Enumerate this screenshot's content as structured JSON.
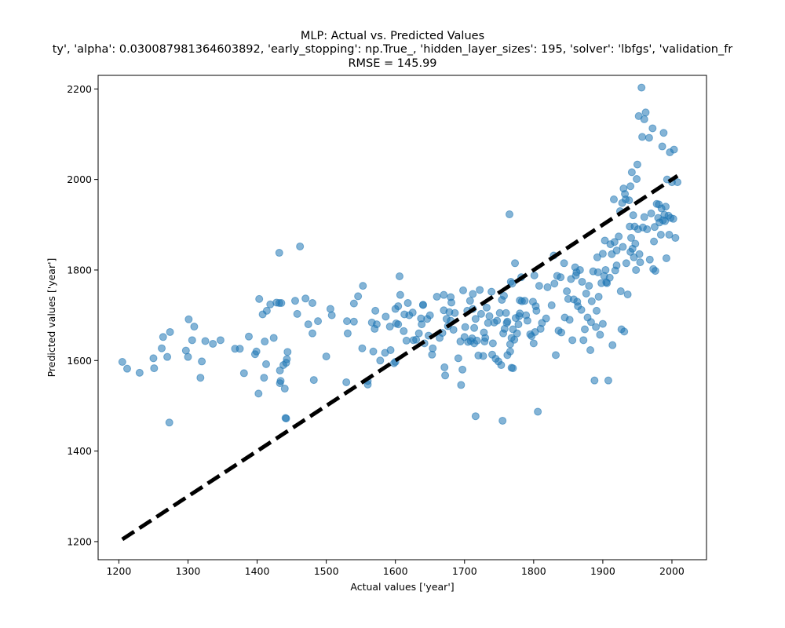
{
  "chart_data": {
    "type": "scatter",
    "title": "MLP: Actual vs. Predicted Values",
    "subtitle": "ty', 'alpha': 0.030087981364603892, 'early_stopping': np.True_, 'hidden_layer_sizes': 195, 'solver': 'lbfgs', 'validation_fr",
    "metric_text": "RMSE = 145.99",
    "xlabel": "Actual values ['year']",
    "ylabel": "Predicted values ['year']",
    "xlim": [
      1170,
      2050
    ],
    "ylim": [
      1160,
      2230
    ],
    "xticks": [
      1200,
      1300,
      1400,
      1500,
      1600,
      1700,
      1800,
      1900,
      2000
    ],
    "yticks": [
      1200,
      1400,
      1600,
      1800,
      2000,
      2200
    ],
    "grid": false,
    "point_color": "#1f77b4",
    "point_alpha": 0.55,
    "reference_line": {
      "style": "dashed",
      "color": "#000000",
      "from": [
        1205,
        1205
      ],
      "to": [
        2008,
        2008
      ]
    },
    "points": [
      [
        1205,
        1597
      ],
      [
        1212,
        1582
      ],
      [
        1230,
        1573
      ],
      [
        1250,
        1605
      ],
      [
        1251,
        1583
      ],
      [
        1262,
        1627
      ],
      [
        1264,
        1652
      ],
      [
        1270,
        1608
      ],
      [
        1273,
        1463
      ],
      [
        1274,
        1663
      ],
      [
        1297,
        1622
      ],
      [
        1300,
        1608
      ],
      [
        1301,
        1691
      ],
      [
        1306,
        1645
      ],
      [
        1309,
        1675
      ],
      [
        1318,
        1562
      ],
      [
        1320,
        1598
      ],
      [
        1325,
        1643
      ],
      [
        1336,
        1637
      ],
      [
        1347,
        1645
      ],
      [
        1368,
        1626
      ],
      [
        1375,
        1626
      ],
      [
        1381,
        1572
      ],
      [
        1388,
        1653
      ],
      [
        1397,
        1614
      ],
      [
        1399,
        1620
      ],
      [
        1402,
        1527
      ],
      [
        1403,
        1736
      ],
      [
        1408,
        1702
      ],
      [
        1410,
        1562
      ],
      [
        1411,
        1642
      ],
      [
        1413,
        1592
      ],
      [
        1414,
        1710
      ],
      [
        1419,
        1724
      ],
      [
        1424,
        1650
      ],
      [
        1428,
        1728
      ],
      [
        1432,
        1727
      ],
      [
        1432,
        1838
      ],
      [
        1433,
        1550
      ],
      [
        1433,
        1578
      ],
      [
        1434,
        1555
      ],
      [
        1435,
        1727
      ],
      [
        1438,
        1590
      ],
      [
        1440,
        1538
      ],
      [
        1441,
        1473
      ],
      [
        1442,
        1472
      ],
      [
        1442,
        1595
      ],
      [
        1443,
        1603
      ],
      [
        1444,
        1619
      ],
      [
        1455,
        1732
      ],
      [
        1458,
        1703
      ],
      [
        1462,
        1852
      ],
      [
        1470,
        1737
      ],
      [
        1474,
        1680
      ],
      [
        1480,
        1727
      ],
      [
        1480,
        1660
      ],
      [
        1482,
        1557
      ],
      [
        1488,
        1687
      ],
      [
        1500,
        1609
      ],
      [
        1506,
        1714
      ],
      [
        1508,
        1700
      ],
      [
        1529,
        1552
      ],
      [
        1530,
        1687
      ],
      [
        1531,
        1660
      ],
      [
        1540,
        1726
      ],
      [
        1540,
        1686
      ],
      [
        1546,
        1742
      ],
      [
        1552,
        1627
      ],
      [
        1553,
        1765
      ],
      [
        1560,
        1547
      ],
      [
        1560,
        1555
      ],
      [
        1566,
        1684
      ],
      [
        1568,
        1620
      ],
      [
        1570,
        1670
      ],
      [
        1571,
        1710
      ],
      [
        1573,
        1680
      ],
      [
        1578,
        1600
      ],
      [
        1585,
        1617
      ],
      [
        1586,
        1697
      ],
      [
        1592,
        1675
      ],
      [
        1593,
        1623
      ],
      [
        1598,
        1594
      ],
      [
        1600,
        1714
      ],
      [
        1600,
        1597
      ],
      [
        1601,
        1682
      ],
      [
        1604,
        1720
      ],
      [
        1604,
        1680
      ],
      [
        1606,
        1786
      ],
      [
        1607,
        1745
      ],
      [
        1612,
        1665
      ],
      [
        1613,
        1702
      ],
      [
        1616,
        1644
      ],
      [
        1618,
        1727
      ],
      [
        1620,
        1700
      ],
      [
        1625,
        1706
      ],
      [
        1626,
        1645
      ],
      [
        1630,
        1646
      ],
      [
        1634,
        1660
      ],
      [
        1637,
        1693
      ],
      [
        1638,
        1680
      ],
      [
        1640,
        1723
      ],
      [
        1640,
        1723
      ],
      [
        1642,
        1638
      ],
      [
        1646,
        1692
      ],
      [
        1648,
        1655
      ],
      [
        1650,
        1700
      ],
      [
        1653,
        1613
      ],
      [
        1654,
        1627
      ],
      [
        1660,
        1741
      ],
      [
        1664,
        1650
      ],
      [
        1668,
        1661
      ],
      [
        1670,
        1711
      ],
      [
        1670,
        1745
      ],
      [
        1671,
        1585
      ],
      [
        1672,
        1567
      ],
      [
        1674,
        1692
      ],
      [
        1676,
        1676
      ],
      [
        1678,
        1707
      ],
      [
        1680,
        1688
      ],
      [
        1680,
        1740
      ],
      [
        1681,
        1728
      ],
      [
        1684,
        1668
      ],
      [
        1686,
        1705
      ],
      [
        1691,
        1605
      ],
      [
        1694,
        1642
      ],
      [
        1695,
        1546
      ],
      [
        1697,
        1580
      ],
      [
        1698,
        1755
      ],
      [
        1700,
        1652
      ],
      [
        1701,
        1674
      ],
      [
        1704,
        1710
      ],
      [
        1705,
        1641
      ],
      [
        1708,
        1732
      ],
      [
        1709,
        1643
      ],
      [
        1711,
        1649
      ],
      [
        1712,
        1714
      ],
      [
        1712,
        1747
      ],
      [
        1714,
        1672
      ],
      [
        1714,
        1638
      ],
      [
        1716,
        1477
      ],
      [
        1716,
        1692
      ],
      [
        1718,
        1644
      ],
      [
        1720,
        1611
      ],
      [
        1722,
        1756
      ],
      [
        1724,
        1703
      ],
      [
        1727,
        1610
      ],
      [
        1728,
        1662
      ],
      [
        1729,
        1642
      ],
      [
        1730,
        1650
      ],
      [
        1732,
        1717
      ],
      [
        1734,
        1683
      ],
      [
        1736,
        1698
      ],
      [
        1739,
        1752
      ],
      [
        1740,
        1613
      ],
      [
        1741,
        1638
      ],
      [
        1743,
        1684
      ],
      [
        1745,
        1604
      ],
      [
        1747,
        1688
      ],
      [
        1749,
        1598
      ],
      [
        1751,
        1705
      ],
      [
        1753,
        1590
      ],
      [
        1754,
        1734
      ],
      [
        1755,
        1467
      ],
      [
        1756,
        1660
      ],
      [
        1757,
        1743
      ],
      [
        1758,
        1670
      ],
      [
        1760,
        1705
      ],
      [
        1761,
        1683
      ],
      [
        1762,
        1686
      ],
      [
        1762,
        1612
      ],
      [
        1765,
        1923
      ],
      [
        1766,
        1620
      ],
      [
        1766,
        1636
      ],
      [
        1767,
        1774
      ],
      [
        1768,
        1650
      ],
      [
        1768,
        1584
      ],
      [
        1769,
        1770
      ],
      [
        1770,
        1583
      ],
      [
        1770,
        1669
      ],
      [
        1772,
        1646
      ],
      [
        1773,
        1815
      ],
      [
        1774,
        1694
      ],
      [
        1776,
        1660
      ],
      [
        1778,
        1680
      ],
      [
        1779,
        1698
      ],
      [
        1780,
        1704
      ],
      [
        1780,
        1733
      ],
      [
        1782,
        1784
      ],
      [
        1783,
        1731
      ],
      [
        1787,
        1732
      ],
      [
        1789,
        1700
      ],
      [
        1791,
        1688
      ],
      [
        1795,
        1658
      ],
      [
        1797,
        1654
      ],
      [
        1799,
        1730
      ],
      [
        1800,
        1638
      ],
      [
        1801,
        1788
      ],
      [
        1802,
        1663
      ],
      [
        1803,
        1720
      ],
      [
        1804,
        1710
      ],
      [
        1806,
        1487
      ],
      [
        1808,
        1765
      ],
      [
        1810,
        1670
      ],
      [
        1812,
        1683
      ],
      [
        1818,
        1693
      ],
      [
        1820,
        1762
      ],
      [
        1826,
        1722
      ],
      [
        1829,
        1832
      ],
      [
        1830,
        1770
      ],
      [
        1832,
        1612
      ],
      [
        1834,
        1787
      ],
      [
        1836,
        1666
      ],
      [
        1839,
        1784
      ],
      [
        1840,
        1662
      ],
      [
        1844,
        1815
      ],
      [
        1845,
        1695
      ],
      [
        1848,
        1753
      ],
      [
        1850,
        1736
      ],
      [
        1852,
        1690
      ],
      [
        1854,
        1780
      ],
      [
        1856,
        1645
      ],
      [
        1858,
        1735
      ],
      [
        1860,
        1806
      ],
      [
        1861,
        1788
      ],
      [
        1862,
        1795
      ],
      [
        1863,
        1730
      ],
      [
        1864,
        1720
      ],
      [
        1867,
        1800
      ],
      [
        1869,
        1712
      ],
      [
        1870,
        1774
      ],
      [
        1872,
        1645
      ],
      [
        1874,
        1669
      ],
      [
        1876,
        1748
      ],
      [
        1878,
        1695
      ],
      [
        1880,
        1765
      ],
      [
        1882,
        1623
      ],
      [
        1883,
        1685
      ],
      [
        1884,
        1731
      ],
      [
        1886,
        1797
      ],
      [
        1888,
        1556
      ],
      [
        1890,
        1674
      ],
      [
        1891,
        1710
      ],
      [
        1892,
        1828
      ],
      [
        1893,
        1795
      ],
      [
        1894,
        1741
      ],
      [
        1896,
        1657
      ],
      [
        1898,
        1771
      ],
      [
        1900,
        1681
      ],
      [
        1900,
        1836
      ],
      [
        1902,
        1787
      ],
      [
        1903,
        1865
      ],
      [
        1904,
        1800
      ],
      [
        1905,
        1773
      ],
      [
        1906,
        1771
      ],
      [
        1908,
        1556
      ],
      [
        1910,
        1783
      ],
      [
        1911,
        1857
      ],
      [
        1913,
        1835
      ],
      [
        1914,
        1634
      ],
      [
        1916,
        1956
      ],
      [
        1917,
        1862
      ],
      [
        1918,
        1799
      ],
      [
        1920,
        1843
      ],
      [
        1920,
        1810
      ],
      [
        1923,
        1874
      ],
      [
        1925,
        1930
      ],
      [
        1926,
        1753
      ],
      [
        1927,
        1669
      ],
      [
        1928,
        1948
      ],
      [
        1929,
        1851
      ],
      [
        1930,
        1980
      ],
      [
        1931,
        1664
      ],
      [
        1932,
        1968
      ],
      [
        1933,
        1956
      ],
      [
        1934,
        1815
      ],
      [
        1936,
        1746
      ],
      [
        1938,
        1954
      ],
      [
        1939,
        1896
      ],
      [
        1940,
        1840
      ],
      [
        1940,
        1985
      ],
      [
        1941,
        1871
      ],
      [
        1942,
        2016
      ],
      [
        1943,
        1847
      ],
      [
        1944,
        1921
      ],
      [
        1945,
        1828
      ],
      [
        1946,
        1896
      ],
      [
        1947,
        1858
      ],
      [
        1948,
        1800
      ],
      [
        1949,
        2001
      ],
      [
        1950,
        2033
      ],
      [
        1951,
        1890
      ],
      [
        1952,
        2140
      ],
      [
        1953,
        1835
      ],
      [
        1954,
        1817
      ],
      [
        1956,
        2203
      ],
      [
        1957,
        2094
      ],
      [
        1958,
        1894
      ],
      [
        1960,
        1917
      ],
      [
        1960,
        2133
      ],
      [
        1962,
        2148
      ],
      [
        1964,
        1890
      ],
      [
        1967,
        2092
      ],
      [
        1968,
        1823
      ],
      [
        1970,
        1925
      ],
      [
        1972,
        2113
      ],
      [
        1973,
        1802
      ],
      [
        1974,
        1863
      ],
      [
        1975,
        1895
      ],
      [
        1976,
        1798
      ],
      [
        1978,
        1946
      ],
      [
        1980,
        1915
      ],
      [
        1981,
        1945
      ],
      [
        1982,
        1905
      ],
      [
        1984,
        1878
      ],
      [
        1985,
        1936
      ],
      [
        1986,
        2073
      ],
      [
        1987,
        1910
      ],
      [
        1988,
        2103
      ],
      [
        1989,
        1922
      ],
      [
        1990,
        1908
      ],
      [
        1991,
        1940
      ],
      [
        1992,
        1826
      ],
      [
        1993,
        2000
      ],
      [
        1995,
        1920
      ],
      [
        1996,
        1878
      ],
      [
        1997,
        2060
      ],
      [
        1998,
        1915
      ],
      [
        2000,
        1994
      ],
      [
        2002,
        1913
      ],
      [
        2003,
        2066
      ],
      [
        2005,
        1871
      ],
      [
        2008,
        1994
      ]
    ]
  }
}
